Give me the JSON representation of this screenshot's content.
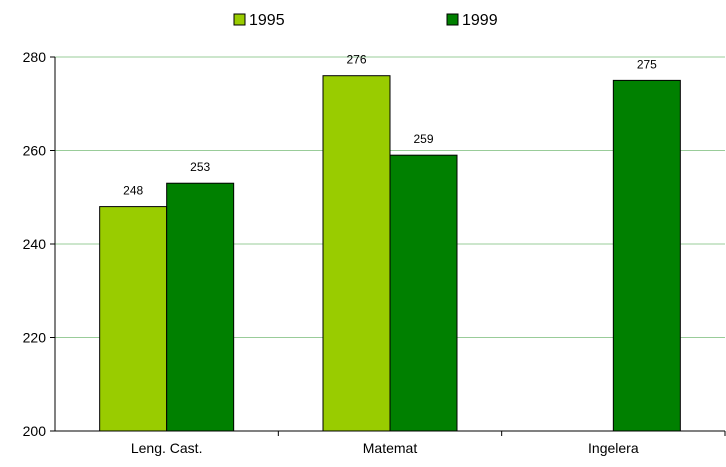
{
  "chart_data": {
    "type": "bar",
    "categories": [
      "Leng. Cast.",
      "Matemat",
      "Ingelera"
    ],
    "series": [
      {
        "name": "1995",
        "values": [
          248,
          276,
          null
        ],
        "color": "#99CC00"
      },
      {
        "name": "1999",
        "values": [
          253,
          259,
          275
        ],
        "color": "#008000"
      }
    ],
    "data_labels": [
      [
        "248",
        "276",
        ""
      ],
      [
        "253",
        "259",
        "275"
      ]
    ],
    "y_ticks": [
      "200",
      "220",
      "240",
      "260",
      "280"
    ],
    "ylim": [
      200,
      280
    ],
    "grid": true,
    "gridline_color": "#99CC99",
    "legend_position": "top",
    "title": "",
    "xlabel": "",
    "ylabel": ""
  }
}
